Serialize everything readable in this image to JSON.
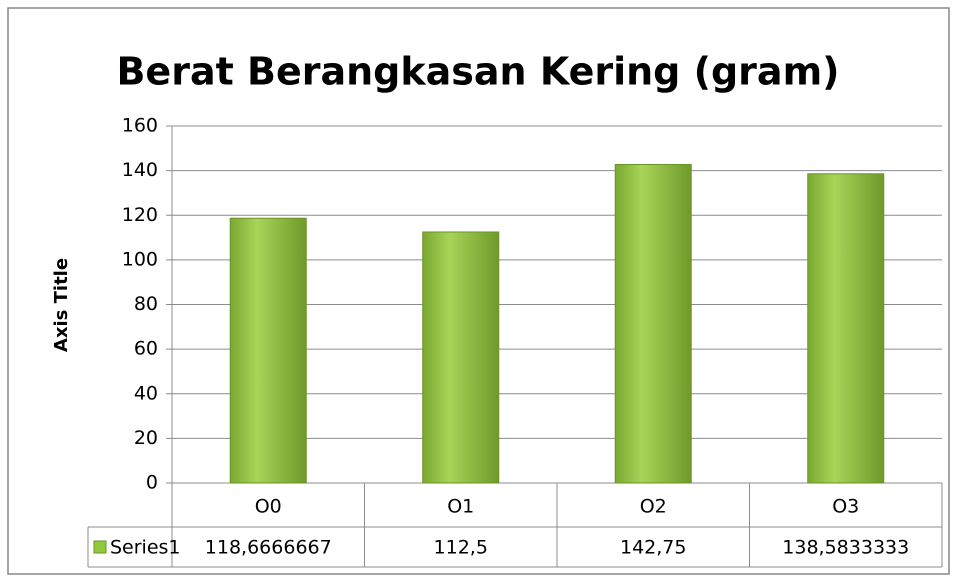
{
  "chart_data": {
    "type": "bar",
    "title": "Berat Berangkasan Kering (gram)",
    "y_axis_label": "Axis Title",
    "categories": [
      "O0",
      "O1",
      "O2",
      "O3"
    ],
    "series": [
      {
        "name": "Series1",
        "color": "#92c83e",
        "values": [
          118.6666667,
          112.5,
          142.75,
          138.5833333
        ],
        "value_labels": [
          "118,6666667",
          "112,5",
          "142,75",
          "138,5833333"
        ]
      }
    ],
    "ylim": [
      0,
      160
    ],
    "yticks": [
      0,
      20,
      40,
      60,
      80,
      100,
      120,
      140,
      160
    ],
    "grid": true,
    "data_table": true
  }
}
